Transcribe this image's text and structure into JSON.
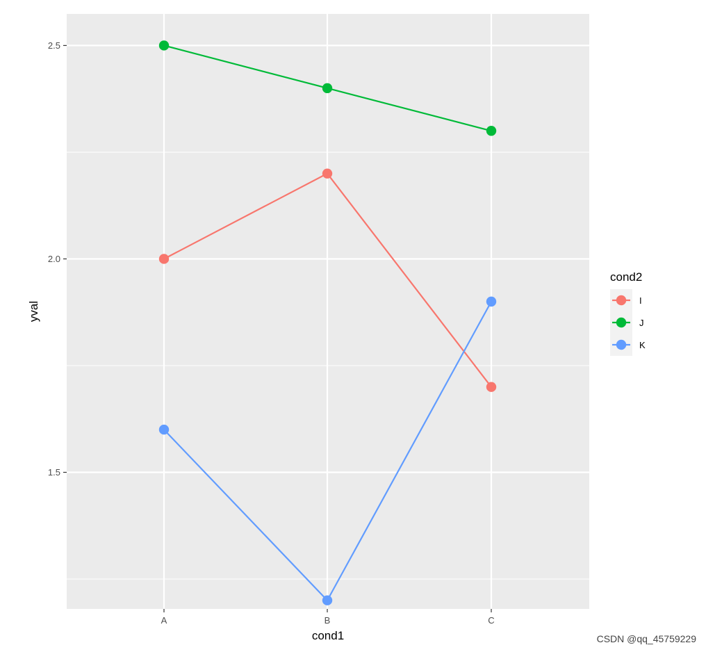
{
  "chart_data": {
    "type": "line",
    "x_label": "cond1",
    "y_label": "yval",
    "categories": [
      "A",
      "B",
      "C"
    ],
    "y_ticks": [
      "1.5",
      "2.0",
      "2.5"
    ],
    "ylim": [
      1.18,
      2.574
    ],
    "grid": true,
    "legend": {
      "title": "cond2",
      "position": "right"
    },
    "series": [
      {
        "name": "I",
        "color": "#F8766D",
        "values": [
          2.0,
          2.2,
          1.7
        ]
      },
      {
        "name": "J",
        "color": "#00BA38",
        "values": [
          2.5,
          2.4,
          2.3
        ]
      },
      {
        "name": "K",
        "color": "#619CFF",
        "values": [
          1.6,
          1.2,
          1.9
        ]
      }
    ]
  },
  "watermark": "CSDN @qq_45759229"
}
